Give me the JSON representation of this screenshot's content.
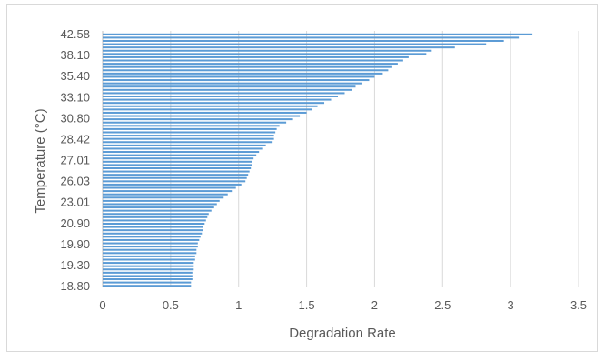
{
  "chart_data": {
    "type": "bar",
    "orientation": "horizontal",
    "xlabel": "Degradation Rate",
    "ylabel": "Temperature (°C)",
    "xlim": [
      0,
      3.5
    ],
    "xticks": [
      0,
      0.5,
      1,
      1.5,
      2,
      2.5,
      3,
      3.5
    ],
    "xtick_labels": [
      "0",
      "0.5",
      "1",
      "1.5",
      "2",
      "2.5",
      "3",
      "3.5"
    ],
    "grid": "vertical",
    "bar_color": "#5b9bd5",
    "ytick_labels": [
      "42.58",
      "38.10",
      "35.40",
      "33.10",
      "30.80",
      "28.42",
      "27.01",
      "26.03",
      "23.01",
      "20.90",
      "19.90",
      "19.30",
      "18.80"
    ],
    "values": [
      3.16,
      3.06,
      2.95,
      2.82,
      2.59,
      2.42,
      2.38,
      2.25,
      2.21,
      2.17,
      2.13,
      2.1,
      2.06,
      2.0,
      1.96,
      1.91,
      1.86,
      1.83,
      1.78,
      1.73,
      1.68,
      1.63,
      1.58,
      1.54,
      1.5,
      1.45,
      1.4,
      1.35,
      1.3,
      1.28,
      1.27,
      1.26,
      1.26,
      1.25,
      1.2,
      1.18,
      1.15,
      1.13,
      1.11,
      1.1,
      1.1,
      1.09,
      1.08,
      1.07,
      1.06,
      1.05,
      1.02,
      0.98,
      0.95,
      0.92,
      0.89,
      0.86,
      0.84,
      0.82,
      0.8,
      0.78,
      0.77,
      0.76,
      0.75,
      0.74,
      0.74,
      0.73,
      0.72,
      0.71,
      0.7,
      0.7,
      0.69,
      0.69,
      0.68,
      0.68,
      0.67,
      0.67,
      0.67,
      0.66,
      0.66,
      0.66,
      0.65,
      0.65
    ]
  }
}
